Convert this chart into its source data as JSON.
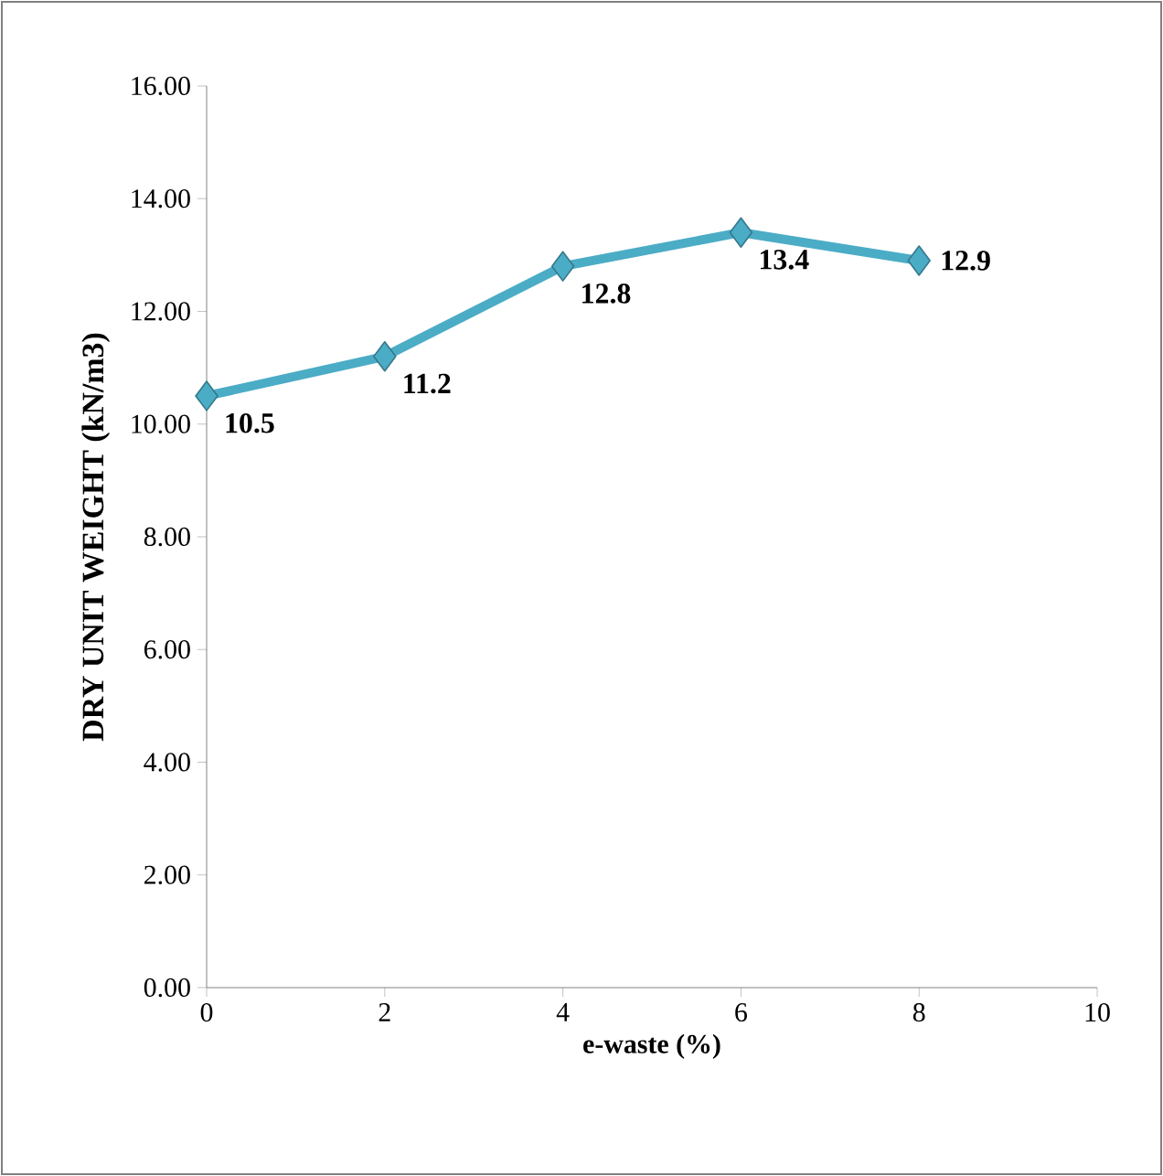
{
  "chart_data": {
    "type": "line",
    "xlabel": "e-waste (%)",
    "ylabel": "DRY UNIT WEIGHT  (kN/m3)",
    "x": [
      0,
      2,
      4,
      6,
      8
    ],
    "series": [
      {
        "color": "#4bacc6",
        "values": [
          10.5,
          11.2,
          12.8,
          13.4,
          12.9
        ],
        "value_labels": [
          "10.5",
          "11.2",
          "12.8",
          "13.4",
          "12.9"
        ]
      }
    ],
    "xlim": [
      0,
      10
    ],
    "xticks": [
      0,
      2,
      4,
      6,
      8,
      10
    ],
    "ylim": [
      0,
      16
    ],
    "yticks": [
      {
        "value": 0,
        "label": "0.00"
      },
      {
        "value": 2,
        "label": "2.00"
      },
      {
        "value": 4,
        "label": "4.00"
      },
      {
        "value": 6,
        "label": "6.00"
      },
      {
        "value": 8,
        "label": "8.00"
      },
      {
        "value": 10,
        "label": "10.00"
      },
      {
        "value": 12,
        "label": "12.00"
      },
      {
        "value": 14,
        "label": "14.00"
      },
      {
        "value": 16,
        "label": "16.00"
      }
    ],
    "marker": "diamond",
    "line_style": "solid",
    "grid": false
  }
}
